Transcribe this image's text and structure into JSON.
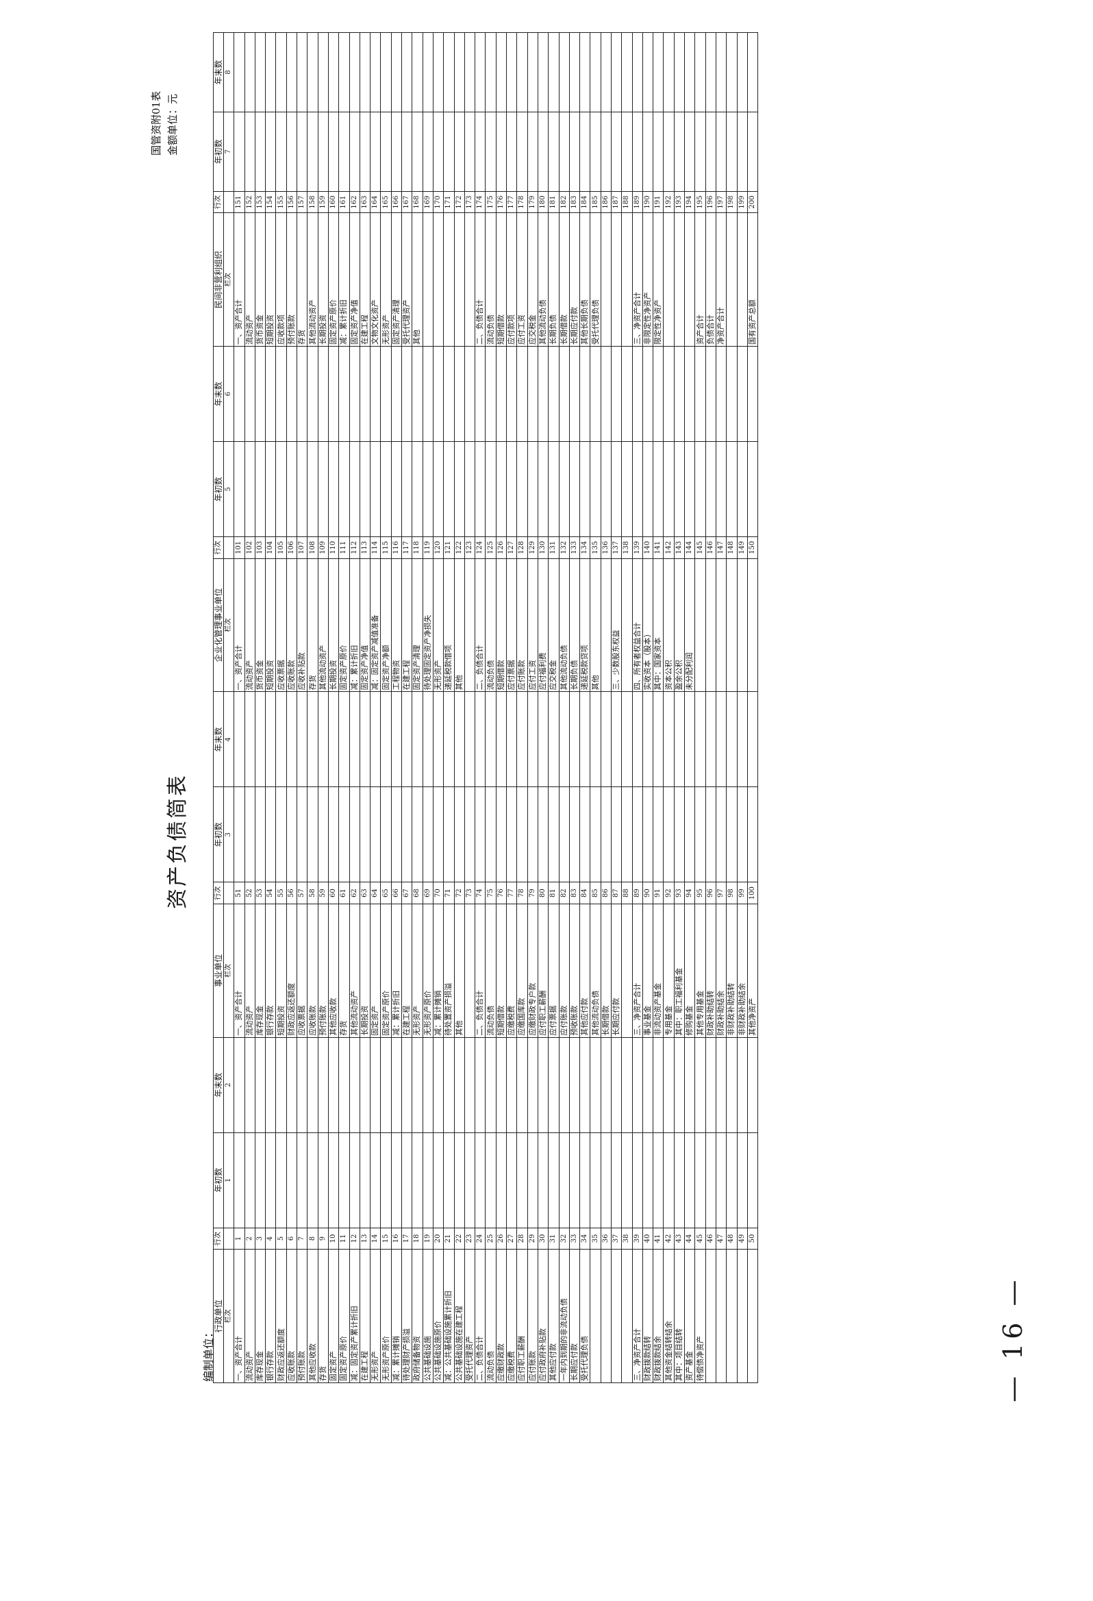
{
  "page_number": "— 16 —",
  "title": "资产负债简表",
  "form_code": "国管资附01表",
  "unit": "金额单位：元",
  "org_label": "编制单位：",
  "section_headers": [
    {
      "unit": "行政单位",
      "line": "行次",
      "begin": "年初数",
      "end": "年末数"
    },
    {
      "unit": "事业单位",
      "line": "行次",
      "begin": "年初数",
      "end": "年末数"
    },
    {
      "unit": "企业化管理事业单位",
      "line": "行次",
      "begin": "年初数",
      "end": "年末数"
    },
    {
      "unit": "民间非营利组织",
      "line": "行次",
      "begin": "年初数",
      "end": "年末数"
    }
  ],
  "subheader": {
    "label": "栏次",
    "cols": [
      "1",
      "2",
      "3",
      "4",
      "5",
      "6",
      "7",
      "8"
    ]
  },
  "rows": [
    [
      {
        "n": "一、资产合计",
        "l": "1"
      },
      {
        "n": "一、资产合计",
        "l": "51"
      },
      {
        "n": "一、资产合计",
        "l": "101"
      },
      {
        "n": "一、资产合计",
        "l": "151"
      }
    ],
    [
      {
        "n": "流动资产",
        "l": "2"
      },
      {
        "n": "流动资产",
        "l": "52"
      },
      {
        "n": "流动资产",
        "l": "102"
      },
      {
        "n": "流动资产",
        "l": "152"
      }
    ],
    [
      {
        "n": "库存现金",
        "l": "3"
      },
      {
        "n": "库存现金",
        "l": "53"
      },
      {
        "n": "货币资金",
        "l": "103"
      },
      {
        "n": "货币资金",
        "l": "153"
      }
    ],
    [
      {
        "n": "银行存款",
        "l": "4"
      },
      {
        "n": "银行存款",
        "l": "54"
      },
      {
        "n": "短期投资",
        "l": "104"
      },
      {
        "n": "短期投资",
        "l": "154"
      }
    ],
    [
      {
        "n": "财政应返还额度",
        "l": "5"
      },
      {
        "n": "短期投资",
        "l": "55"
      },
      {
        "n": "应收票据",
        "l": "105"
      },
      {
        "n": "应收款项",
        "l": "155"
      }
    ],
    [
      {
        "n": "应收账款",
        "l": "6"
      },
      {
        "n": "财政应返还额度",
        "l": "56"
      },
      {
        "n": "应收账款",
        "l": "106"
      },
      {
        "n": "预付账款",
        "l": "156"
      }
    ],
    [
      {
        "n": "预付账款",
        "l": "7"
      },
      {
        "n": "应收票据",
        "l": "57"
      },
      {
        "n": "应收补贴款",
        "l": "107"
      },
      {
        "n": "存货",
        "l": "157"
      }
    ],
    [
      {
        "n": "其他应收款",
        "l": "8"
      },
      {
        "n": "应收账款",
        "l": "58"
      },
      {
        "n": "存货",
        "l": "108"
      },
      {
        "n": "其他流动资产",
        "l": "158"
      }
    ],
    [
      {
        "n": "存货",
        "l": "9"
      },
      {
        "n": "预付账款",
        "l": "59"
      },
      {
        "n": "其他流动资产",
        "l": "109"
      },
      {
        "n": "长期投资",
        "l": "159"
      }
    ],
    [
      {
        "n": "固定资产",
        "l": "10"
      },
      {
        "n": "其他应收款",
        "l": "60"
      },
      {
        "n": "长期投资",
        "l": "110"
      },
      {
        "n": "固定资产原价",
        "l": "160"
      }
    ],
    [
      {
        "n": "固定资产原价",
        "l": "11"
      },
      {
        "n": "存货",
        "l": "61"
      },
      {
        "n": "固定资产原价",
        "l": "111"
      },
      {
        "n": "减：累计折旧",
        "l": "161"
      }
    ],
    [
      {
        "n": "减：固定资产累计折旧",
        "l": "12"
      },
      {
        "n": "其他流动资产",
        "l": "62"
      },
      {
        "n": "减：累计折旧",
        "l": "112"
      },
      {
        "n": "固定资产净值",
        "l": "162"
      }
    ],
    [
      {
        "n": "在建工程",
        "l": "13"
      },
      {
        "n": "长期投资",
        "l": "63"
      },
      {
        "n": "固定资产净值",
        "l": "113"
      },
      {
        "n": "在建工程",
        "l": "163"
      }
    ],
    [
      {
        "n": "无形资产",
        "l": "14"
      },
      {
        "n": "固定资产",
        "l": "64"
      },
      {
        "n": "减：固定资产减值准备",
        "l": "114"
      },
      {
        "n": "文物文化资产",
        "l": "164"
      }
    ],
    [
      {
        "n": "无形资产原价",
        "l": "15"
      },
      {
        "n": "固定资产原价",
        "l": "65"
      },
      {
        "n": "固定资产净额",
        "l": "115"
      },
      {
        "n": "无形资产",
        "l": "165"
      }
    ],
    [
      {
        "n": "减：累计摊销",
        "l": "16"
      },
      {
        "n": "减：累计折旧",
        "l": "66"
      },
      {
        "n": "工程物资",
        "l": "116"
      },
      {
        "n": "固定资产清理",
        "l": "166"
      }
    ],
    [
      {
        "n": "待处理财产损溢",
        "l": "17"
      },
      {
        "n": "在建工程",
        "l": "67"
      },
      {
        "n": "在建工程",
        "l": "117"
      },
      {
        "n": "受托代理资产",
        "l": "167"
      }
    ],
    [
      {
        "n": "政府储备物资",
        "l": "18"
      },
      {
        "n": "无形资产",
        "l": "68"
      },
      {
        "n": "固定资产清理",
        "l": "118"
      },
      {
        "n": "其他",
        "l": "168"
      }
    ],
    [
      {
        "n": "公共基础设施",
        "l": "19"
      },
      {
        "n": "无形资产原价",
        "l": "69"
      },
      {
        "n": "待处理固定资产净损失",
        "l": "119"
      },
      {
        "n": "",
        "l": "169"
      }
    ],
    [
      {
        "n": "公共基础设施原价",
        "l": "20"
      },
      {
        "n": "减：累计摊销",
        "l": "70"
      },
      {
        "n": "无形资产",
        "l": "120"
      },
      {
        "n": "",
        "l": "170"
      }
    ],
    [
      {
        "n": "减：公共基础设施累计折旧",
        "l": "21"
      },
      {
        "n": "待处置资产损溢",
        "l": "71"
      },
      {
        "n": "递延税款借项",
        "l": "121"
      },
      {
        "n": "",
        "l": "171"
      }
    ],
    [
      {
        "n": "公共基础设施在建工程",
        "l": "22"
      },
      {
        "n": "其他",
        "l": "72"
      },
      {
        "n": "其他",
        "l": "122"
      },
      {
        "n": "",
        "l": "172"
      }
    ],
    [
      {
        "n": "受托代理资产",
        "l": "23"
      },
      {
        "n": "",
        "l": "73"
      },
      {
        "n": "",
        "l": "123"
      },
      {
        "n": "",
        "l": "173"
      }
    ],
    [
      {
        "n": "二、负债合计",
        "l": "24"
      },
      {
        "n": "二、负债合计",
        "l": "74"
      },
      {
        "n": "二、负债合计",
        "l": "124"
      },
      {
        "n": "二、负债合计",
        "l": "174"
      }
    ],
    [
      {
        "n": "流动负债",
        "l": "25"
      },
      {
        "n": "流动负债",
        "l": "75"
      },
      {
        "n": "流动负债",
        "l": "125"
      },
      {
        "n": "流动负债",
        "l": "175"
      }
    ],
    [
      {
        "n": "应缴财政款",
        "l": "26"
      },
      {
        "n": "短期借款",
        "l": "76"
      },
      {
        "n": "短期借款",
        "l": "126"
      },
      {
        "n": "短期借款",
        "l": "176"
      }
    ],
    [
      {
        "n": "应缴税费",
        "l": "27"
      },
      {
        "n": "应缴税费",
        "l": "77"
      },
      {
        "n": "应付票据",
        "l": "127"
      },
      {
        "n": "应付款项",
        "l": "177"
      }
    ],
    [
      {
        "n": "应付职工薪酬",
        "l": "28"
      },
      {
        "n": "应缴国库款",
        "l": "78"
      },
      {
        "n": "应付账款",
        "l": "128"
      },
      {
        "n": "应付工资",
        "l": "178"
      }
    ],
    [
      {
        "n": "应付账款",
        "l": "29"
      },
      {
        "n": "应缴财政专户款",
        "l": "79"
      },
      {
        "n": "应付工资",
        "l": "129"
      },
      {
        "n": "应交税金",
        "l": "179"
      }
    ],
    [
      {
        "n": "应付政府补贴款",
        "l": "30"
      },
      {
        "n": "应付职工薪酬",
        "l": "80"
      },
      {
        "n": "应付福利费",
        "l": "130"
      },
      {
        "n": "其他流动负债",
        "l": "180"
      }
    ],
    [
      {
        "n": "其他应付款",
        "l": "31"
      },
      {
        "n": "应付票据",
        "l": "81"
      },
      {
        "n": "应交税金",
        "l": "131"
      },
      {
        "n": "长期负债",
        "l": "181"
      }
    ],
    [
      {
        "n": "一年内到期的非流动负债",
        "l": "32"
      },
      {
        "n": "应付账款",
        "l": "82"
      },
      {
        "n": "其他流动负债",
        "l": "132"
      },
      {
        "n": "长期借款",
        "l": "182"
      }
    ],
    [
      {
        "n": "长期应付款",
        "l": "33"
      },
      {
        "n": "预收账款",
        "l": "83"
      },
      {
        "n": "长期负债",
        "l": "133"
      },
      {
        "n": "长期应付款",
        "l": "183"
      }
    ],
    [
      {
        "n": "受托代理负债",
        "l": "34"
      },
      {
        "n": "其他应付款",
        "l": "84"
      },
      {
        "n": "递延税款贷项",
        "l": "134"
      },
      {
        "n": "其他长期负债",
        "l": "184"
      }
    ],
    [
      {
        "n": "",
        "l": "35"
      },
      {
        "n": "其他流动负债",
        "l": "85"
      },
      {
        "n": "其他",
        "l": "135"
      },
      {
        "n": "受托代理负债",
        "l": "185"
      }
    ],
    [
      {
        "n": "",
        "l": "36"
      },
      {
        "n": "长期借款",
        "l": "86"
      },
      {
        "n": "",
        "l": "136"
      },
      {
        "n": "",
        "l": "186"
      }
    ],
    [
      {
        "n": "",
        "l": "37"
      },
      {
        "n": "长期应付款",
        "l": "87"
      },
      {
        "n": "三、少数股东权益",
        "l": "137"
      },
      {
        "n": "",
        "l": "187"
      }
    ],
    [
      {
        "n": "",
        "l": "38"
      },
      {
        "n": "",
        "l": "88"
      },
      {
        "n": "",
        "l": "138"
      },
      {
        "n": "",
        "l": "188"
      }
    ],
    [
      {
        "n": "三、净资产合计",
        "l": "39"
      },
      {
        "n": "三、净资产合计",
        "l": "89"
      },
      {
        "n": "四、所有者权益合计",
        "l": "139"
      },
      {
        "n": "三、净资产合计",
        "l": "189"
      }
    ],
    [
      {
        "n": "财政拨款结转",
        "l": "40"
      },
      {
        "n": "事业基金",
        "l": "90"
      },
      {
        "n": "实收资本（股本）",
        "l": "140"
      },
      {
        "n": "非限定性净资产",
        "l": "190"
      }
    ],
    [
      {
        "n": "财政拨款结余",
        "l": "41"
      },
      {
        "n": "非流动资产基金",
        "l": "91"
      },
      {
        "n": "其中：国家资本",
        "l": "141"
      },
      {
        "n": "限定性净资产",
        "l": "191"
      }
    ],
    [
      {
        "n": "其他资金结转结余",
        "l": "42"
      },
      {
        "n": "专用基金",
        "l": "92"
      },
      {
        "n": "资本公积",
        "l": "142"
      },
      {
        "n": "",
        "l": "192"
      }
    ],
    [
      {
        "n": "其中：项目结转",
        "l": "43"
      },
      {
        "n": "其中：职工福利基金",
        "l": "93"
      },
      {
        "n": "盈余公积",
        "l": "143"
      },
      {
        "n": "",
        "l": "193"
      }
    ],
    [
      {
        "n": "资产基金",
        "l": "44"
      },
      {
        "n": "修购基金",
        "l": "94"
      },
      {
        "n": "未分配利润",
        "l": "144"
      },
      {
        "n": "",
        "l": "194"
      }
    ],
    [
      {
        "n": "待偿债净资产",
        "l": "45"
      },
      {
        "n": "其他专用基金",
        "l": "95"
      },
      {
        "n": "",
        "l": "145"
      },
      {
        "n": "资产合计",
        "l": "195"
      }
    ],
    [
      {
        "n": "",
        "l": "46"
      },
      {
        "n": "财政补助结转",
        "l": "96"
      },
      {
        "n": "",
        "l": "146"
      },
      {
        "n": "负债合计",
        "l": "196"
      }
    ],
    [
      {
        "n": "",
        "l": "47"
      },
      {
        "n": "财政补助结余",
        "l": "97"
      },
      {
        "n": "",
        "l": "147"
      },
      {
        "n": "净资产合计",
        "l": "197"
      }
    ],
    [
      {
        "n": "",
        "l": "48"
      },
      {
        "n": "非财政补助结转",
        "l": "98"
      },
      {
        "n": "",
        "l": "148"
      },
      {
        "n": "",
        "l": "198"
      }
    ],
    [
      {
        "n": "",
        "l": "49"
      },
      {
        "n": "非财政补助结余",
        "l": "99"
      },
      {
        "n": "",
        "l": "149"
      },
      {
        "n": "",
        "l": "199"
      }
    ],
    [
      {
        "n": "",
        "l": "50"
      },
      {
        "n": "其他净资产",
        "l": "100"
      },
      {
        "n": "",
        "l": "150"
      },
      {
        "n": "国有资产总额",
        "l": "200"
      }
    ]
  ]
}
